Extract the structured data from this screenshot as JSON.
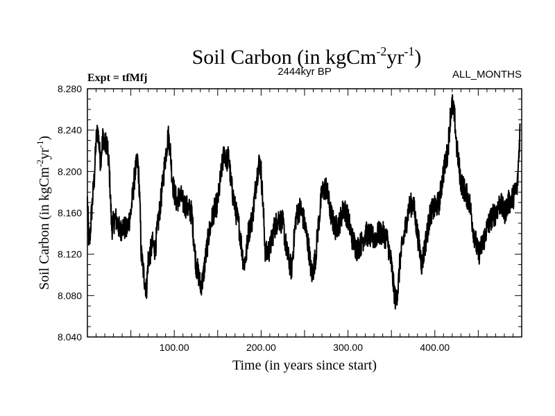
{
  "chart_data": {
    "type": "line",
    "title": {
      "prefix": "Soil Carbon (in kgCm",
      "sup1": "-2",
      "mid": "yr",
      "sup2": "-1",
      "suffix": ")"
    },
    "subtitle": "2444kyr BP",
    "left_label": "Expt = tfMfj",
    "right_label": "ALL_MONTHS",
    "xlabel": "Time (in years since start)",
    "ylabel": {
      "prefix": "Soil Carbon (in kgCm",
      "sup1": "-2",
      "mid": "yr",
      "sup2": "-1",
      "suffix": ")"
    },
    "xlim": [
      0,
      500
    ],
    "ylim": [
      8.04,
      8.28
    ],
    "x_ticks": [
      "100.00",
      "200.00",
      "300.00",
      "400.00"
    ],
    "y_ticks": [
      "8.040",
      "8.080",
      "8.120",
      "8.160",
      "8.200",
      "8.240",
      "8.280"
    ],
    "series": [
      {
        "name": "Soil Carbon",
        "color": "#000000",
        "x": [
          0,
          2,
          5,
          8,
          10,
          12,
          15,
          18,
          20,
          22,
          25,
          28,
          30,
          32,
          35,
          38,
          40,
          45,
          50,
          55,
          58,
          60,
          62,
          65,
          68,
          70,
          72,
          75,
          78,
          80,
          85,
          90,
          93,
          95,
          98,
          100,
          103,
          105,
          108,
          110,
          115,
          120,
          125,
          128,
          130,
          133,
          135,
          140,
          145,
          150,
          155,
          158,
          160,
          163,
          165,
          170,
          175,
          180,
          183,
          185,
          190,
          195,
          198,
          200,
          202,
          205,
          210,
          215,
          220,
          225,
          230,
          235,
          240,
          245,
          250,
          255,
          258,
          260,
          263,
          265,
          270,
          275,
          280,
          285,
          290,
          295,
          300,
          305,
          310,
          315,
          320,
          325,
          330,
          335,
          340,
          345,
          350,
          353,
          355,
          358,
          360,
          365,
          370,
          375,
          380,
          385,
          390,
          395,
          400,
          405,
          410,
          415,
          418,
          420,
          423,
          425,
          430,
          435,
          440,
          445,
          450,
          455,
          460,
          465,
          470,
          475,
          480,
          485,
          490,
          495,
          498
        ],
        "y": [
          8.172,
          8.125,
          8.163,
          8.195,
          8.23,
          8.24,
          8.21,
          8.235,
          8.225,
          8.23,
          8.205,
          8.145,
          8.15,
          8.155,
          8.15,
          8.14,
          8.148,
          8.143,
          8.16,
          8.2,
          8.21,
          8.18,
          8.12,
          8.1,
          8.085,
          8.115,
          8.12,
          8.13,
          8.125,
          8.14,
          8.175,
          8.215,
          8.235,
          8.225,
          8.19,
          8.18,
          8.17,
          8.175,
          8.175,
          8.17,
          8.165,
          8.16,
          8.11,
          8.1,
          8.09,
          8.095,
          8.11,
          8.14,
          8.16,
          8.17,
          8.205,
          8.22,
          8.21,
          8.215,
          8.19,
          8.165,
          8.145,
          8.11,
          8.12,
          8.14,
          8.155,
          8.195,
          8.21,
          8.2,
          8.17,
          8.12,
          8.125,
          8.145,
          8.155,
          8.15,
          8.12,
          8.105,
          8.155,
          8.165,
          8.15,
          8.125,
          8.1,
          8.105,
          8.12,
          8.14,
          8.18,
          8.185,
          8.16,
          8.145,
          8.15,
          8.165,
          8.155,
          8.135,
          8.125,
          8.13,
          8.14,
          8.138,
          8.135,
          8.14,
          8.14,
          8.135,
          8.11,
          8.085,
          8.075,
          8.09,
          8.115,
          8.14,
          8.165,
          8.17,
          8.14,
          8.11,
          8.135,
          8.16,
          8.165,
          8.17,
          8.2,
          8.22,
          8.255,
          8.265,
          8.25,
          8.225,
          8.19,
          8.18,
          8.17,
          8.14,
          8.12,
          8.13,
          8.145,
          8.155,
          8.16,
          8.17,
          8.16,
          8.17,
          8.175,
          8.185,
          8.24
        ]
      }
    ]
  }
}
